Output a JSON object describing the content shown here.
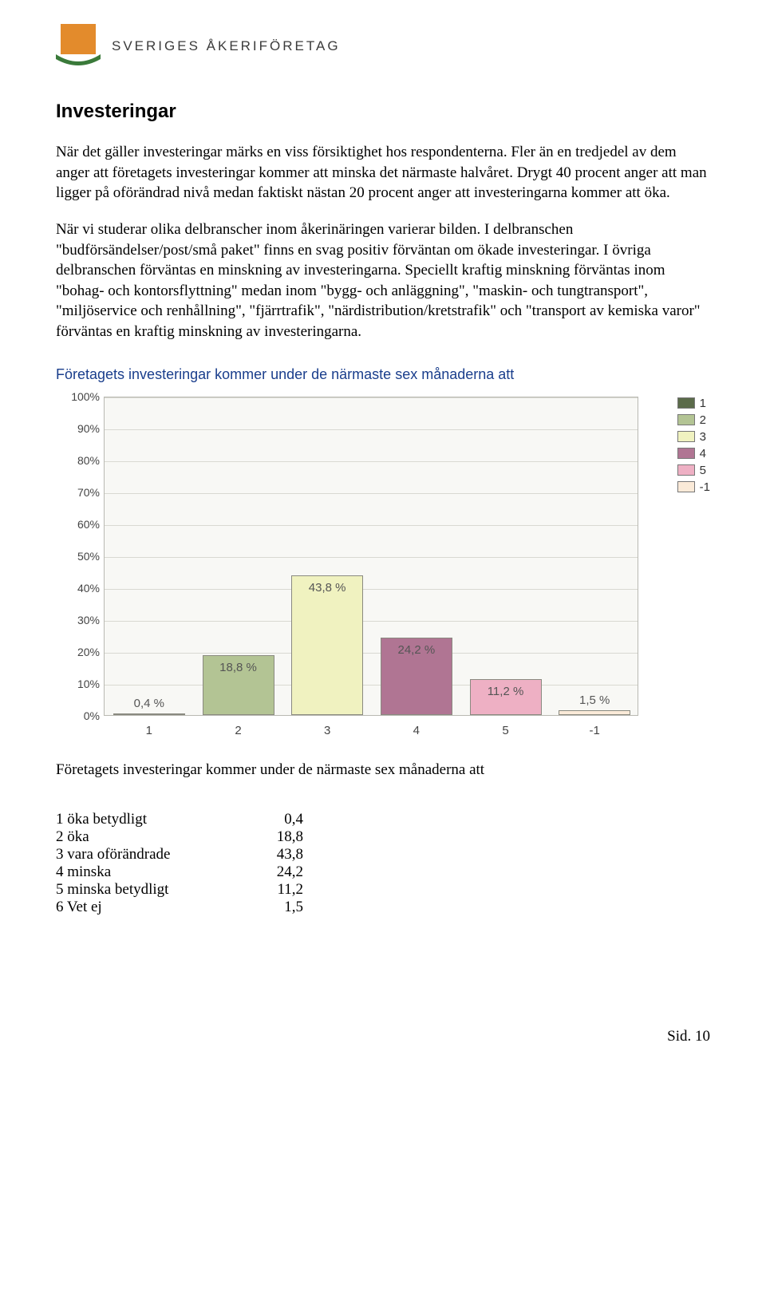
{
  "brand": {
    "name": "SVERIGES ÅKERIFÖRETAG"
  },
  "section_title": "Investeringar",
  "para1": "När det gäller investeringar märks en viss försiktighet hos respondenterna. Fler än en tredjedel av dem anger att företagets investeringar kommer att minska det närmaste halvåret. Drygt 40 procent anger att man ligger på oförändrad nivå medan faktiskt nästan 20 procent anger att investeringarna kommer att öka.",
  "para2": "När vi studerar olika delbranscher inom åkerinäringen varierar bilden. I delbranschen \"budförsändelser/post/små paket\" finns en svag positiv förväntan om ökade investeringar. I övriga delbranschen förväntas en minskning av investeringarna. Speciellt kraftig minskning förväntas inom \"bohag- och kontorsflyttning\" medan inom \"bygg- och anläggning\", \"maskin- och tungtransport\", \"miljöservice och renhållning\", \"fjärrtrafik\", \"närdistribution/kretstrafik\" och \"transport av kemiska varor\" förväntas en kraftig minskning av investeringarna.",
  "chart": {
    "title": "Företagets investeringar kommer under de närmaste sex månaderna att",
    "categories": [
      "1",
      "2",
      "3",
      "4",
      "5",
      "-1"
    ],
    "values": [
      0.4,
      18.8,
      43.8,
      24.2,
      11.2,
      1.5
    ],
    "labels": [
      "0,4 %",
      "18,8 %",
      "43,8 %",
      "24,2 %",
      "11,2 %",
      "1,5 %"
    ],
    "bar_colors": [
      "#5b6b4a",
      "#b3c494",
      "#f0f2c0",
      "#b07593",
      "#eeb0c4",
      "#faead8"
    ],
    "ylim_max": 100,
    "ytick_step": 10,
    "ytick_labels": [
      "0%",
      "10%",
      "20%",
      "30%",
      "40%",
      "50%",
      "60%",
      "70%",
      "80%",
      "90%",
      "100%"
    ],
    "plot_bg": "#f8f8f5",
    "grid_color": "#d9d9d2",
    "legend": [
      {
        "label": "1",
        "color": "#5b6b4a"
      },
      {
        "label": "2",
        "color": "#b3c494"
      },
      {
        "label": "3",
        "color": "#f0f2c0"
      },
      {
        "label": "4",
        "color": "#b07593"
      },
      {
        "label": "5",
        "color": "#eeb0c4"
      },
      {
        "label": "-1",
        "color": "#faead8"
      }
    ]
  },
  "subhead": "Företagets investeringar kommer under de närmaste sex månaderna att",
  "value_rows": [
    {
      "k": "1 öka betydligt",
      "v": "0,4"
    },
    {
      "k": "2 öka",
      "v": "18,8"
    },
    {
      "k": "3 vara oförändrade",
      "v": "43,8"
    },
    {
      "k": "4 minska",
      "v": "24,2"
    },
    {
      "k": "5 minska betydligt",
      "v": "11,2"
    },
    {
      "k": "6 Vet ej",
      "v": "1,5"
    }
  ],
  "footer": "Sid. 10"
}
